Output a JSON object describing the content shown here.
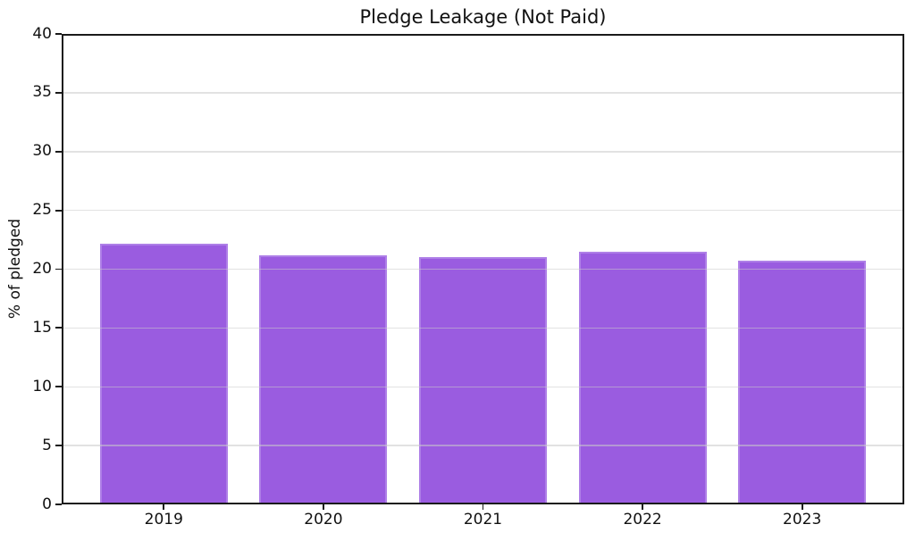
{
  "chart_data": {
    "type": "bar",
    "title": "Pledge Leakage (Not Paid)",
    "xlabel": "",
    "ylabel": "% of pledged",
    "categories": [
      "2019",
      "2020",
      "2021",
      "2022",
      "2023"
    ],
    "values": [
      22.2,
      21.2,
      21.0,
      21.5,
      20.7
    ],
    "ylim": [
      0,
      40
    ],
    "yticks": [
      0,
      5,
      10,
      15,
      20,
      25,
      30,
      35,
      40
    ],
    "xlim": [
      -0.64,
      4.64
    ],
    "bar_width": 0.8,
    "grid": "horizontal, drawn above bars",
    "legend_position": "none",
    "colors": {
      "bar_fill": "#9a5ce0",
      "bar_edge": "#ae7fe7",
      "gridline": "rgba(203,203,203,0.55)",
      "spine": "#1a1a1a",
      "tick": "#1a1a1a",
      "text": "#111111",
      "background": "#ffffff"
    }
  }
}
